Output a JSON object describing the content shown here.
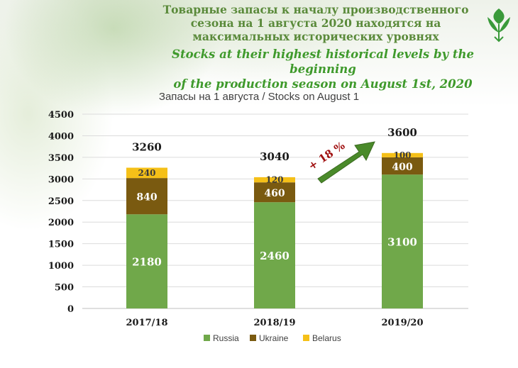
{
  "header": {
    "title_ru_lines": [
      "Товарные запасы к началу производственного",
      "сезона на 1 августа 2020 находятся на",
      "максимальных исторических уровнях"
    ],
    "title_en_lines": [
      "Stocks at their highest historical levels by the beginning",
      "of the production season on August 1st, 2020"
    ]
  },
  "logo": {
    "icon": "leaf-logo-icon",
    "color": "#3a9a3a"
  },
  "chart_data": {
    "type": "bar",
    "stacked": true,
    "title": "Запасы на 1 августа / Stocks on August 1",
    "categories": [
      "2017/18",
      "2018/19",
      "2019/20"
    ],
    "series": [
      {
        "name": "Russia",
        "values": [
          2180,
          2460,
          3100
        ],
        "color": "#70a84a"
      },
      {
        "name": "Ukraine",
        "values": [
          840,
          460,
          400
        ],
        "color": "#7a5a10"
      },
      {
        "name": "Belarus",
        "values": [
          240,
          120,
          100
        ],
        "color": "#f5c018"
      }
    ],
    "totals": [
      3260,
      3040,
      3600
    ],
    "ylim": [
      0,
      4500
    ],
    "yticks": [
      0,
      500,
      1000,
      1500,
      2000,
      2500,
      3000,
      3500,
      4000,
      4500
    ],
    "grid": true,
    "legend": "bottom",
    "annotation": {
      "text": "+ 18 %",
      "color": "#a01010",
      "arrow_color": "#4a8a2a",
      "position": "between 2018/19 and 2019/20"
    }
  }
}
